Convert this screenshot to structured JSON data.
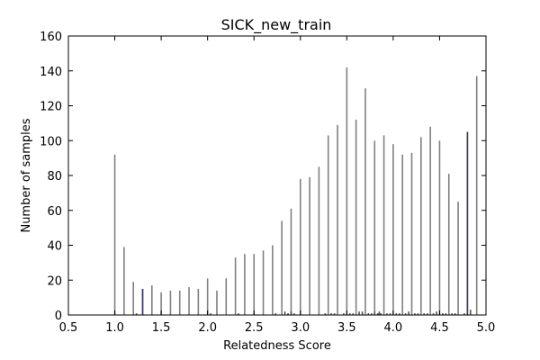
{
  "chart_data": {
    "type": "bar",
    "title": "SICK_new_train",
    "xlabel": "Relatedness Score",
    "ylabel": "Number of samples",
    "xlim": [
      0.5,
      5.0
    ],
    "ylim": [
      0,
      160
    ],
    "xticks": [
      "0.5",
      "1.0",
      "1.5",
      "2.0",
      "2.5",
      "3.0",
      "3.5",
      "4.0",
      "4.5",
      "5.0"
    ],
    "yticks": [
      "0",
      "20",
      "40",
      "60",
      "80",
      "100",
      "120",
      "140",
      "160"
    ],
    "grid": false,
    "series": [
      {
        "x": [
          1.0,
          1.1,
          1.2,
          1.3,
          1.4,
          1.5,
          1.6,
          1.7,
          1.8,
          1.9,
          2.0,
          2.1,
          2.2,
          2.3,
          2.4,
          2.5,
          2.6,
          2.7,
          2.8,
          2.9,
          3.0,
          3.1,
          3.2,
          3.3,
          3.4,
          3.5,
          3.6,
          3.7,
          3.8,
          3.9,
          4.0,
          4.1,
          4.2,
          4.3,
          4.4,
          4.5,
          4.6,
          4.7,
          4.8,
          4.9
        ],
        "values": [
          92,
          39,
          19,
          15,
          17,
          13,
          14,
          14,
          16,
          15,
          21,
          14,
          21,
          33,
          35,
          35,
          37,
          40,
          54,
          61,
          78,
          79,
          85,
          103,
          109,
          142,
          112,
          130,
          100,
          103,
          98,
          92,
          93,
          102,
          108,
          100,
          81,
          65,
          105,
          137
        ],
        "color": "#808080"
      },
      {
        "x": [
          1.3,
          4.8
        ],
        "values": [
          15,
          105
        ],
        "color": "#3a3a6a"
      },
      {
        "x": [
          1.233,
          2.033,
          2.333,
          2.733,
          2.833,
          2.867,
          2.9,
          2.933,
          3.267,
          3.333,
          3.367,
          3.467,
          3.533,
          3.567,
          3.633,
          3.667,
          3.733,
          3.767,
          3.8,
          3.833,
          3.85,
          3.867,
          3.933,
          3.967,
          4.033,
          4.067,
          4.133,
          4.167,
          4.233,
          4.267,
          4.333,
          4.367,
          4.433,
          4.467,
          4.533,
          4.567,
          4.633,
          4.667,
          4.767,
          4.833
        ],
        "values": [
          1,
          1,
          1,
          1,
          2,
          1,
          2,
          1,
          1,
          1,
          1,
          1,
          1,
          1,
          2,
          2,
          1,
          1,
          2,
          1,
          2,
          1,
          1,
          1,
          1,
          1,
          1,
          2,
          1,
          1,
          1,
          1,
          1,
          2,
          1,
          1,
          1,
          1,
          1,
          3
        ],
        "color": "#555555"
      }
    ]
  }
}
